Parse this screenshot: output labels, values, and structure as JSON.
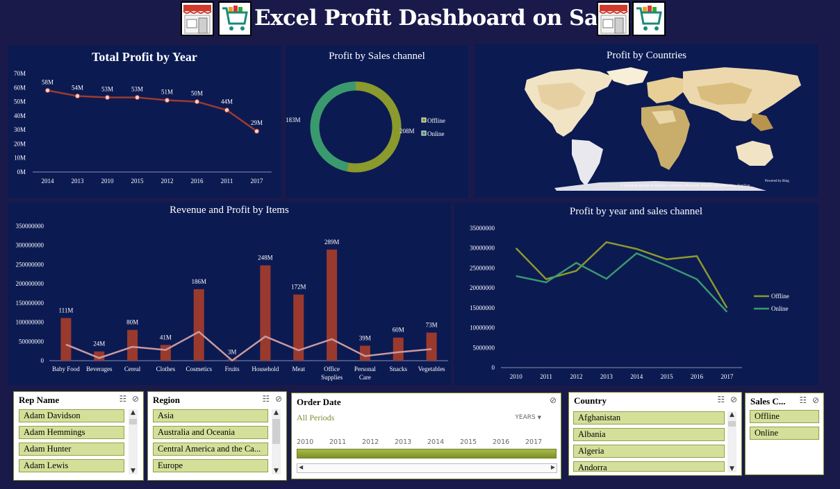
{
  "title": "Excel Profit Dashboard on Sales",
  "colors": {
    "background": "#1a1a4a",
    "panel": "#0c1a52",
    "line_year": "#9c3b2e",
    "offline": "#8a9a2c",
    "online": "#3a9a6e",
    "revenue_bar": "#9a3a2e",
    "profit_line": "#c89aa0"
  },
  "icons": [
    "store-icon",
    "shopping-cart-icon",
    "store-icon",
    "shopping-cart-icon"
  ],
  "charts": {
    "profit_by_year": {
      "title": "Total Profit by Year"
    },
    "profit_by_channel": {
      "title": "Profit by Sales channel"
    },
    "profit_by_country": {
      "title": "Profit by Countries",
      "credit_top": "Powered by Bing",
      "credit_bottom": "© Australian Bureau of Statistics, GeoNames, Microsoft, Navinfo, OpenStreetMap, TomTom"
    },
    "items": {
      "title": "Revenue and Profit by Items"
    },
    "year_channel": {
      "title": "Profit by year and sales channel"
    }
  },
  "chart_data": [
    {
      "type": "line",
      "title": "Total Profit by Year",
      "categories": [
        "2014",
        "2013",
        "2010",
        "2015",
        "2012",
        "2016",
        "2011",
        "2017"
      ],
      "values": [
        58,
        54,
        53,
        53,
        51,
        50,
        44,
        29
      ],
      "data_labels": [
        "58M",
        "54M",
        "53M",
        "53M",
        "51M",
        "50M",
        "44M",
        "29M"
      ],
      "y_ticks": [
        "70M",
        "60M",
        "50M",
        "40M",
        "30M",
        "20M",
        "10M",
        "0M"
      ],
      "ylim": [
        0,
        70
      ],
      "grid": false
    },
    {
      "type": "pie",
      "title": "Profit by Sales channel",
      "labels": [
        "Offline",
        "Online"
      ],
      "values": [
        208,
        183
      ],
      "data_labels": [
        "208M",
        "183M"
      ],
      "legend": "right"
    },
    {
      "type": "bar",
      "title": "Revenue and Profit by Items",
      "categories": [
        "Baby Food",
        "Beverages",
        "Cereal",
        "Clothes",
        "Cosmetics",
        "Fruits",
        "Household",
        "Meat",
        "Office Supplies",
        "Personal Care",
        "Snacks",
        "Vegetables"
      ],
      "series": [
        {
          "type": "bar",
          "values": [
            111,
            24,
            80,
            41,
            186,
            3,
            248,
            172,
            289,
            39,
            60,
            73
          ],
          "data_labels": [
            "111M",
            "24M",
            "80M",
            "41M",
            "186M",
            "3M",
            "248M",
            "172M",
            "289M",
            "39M",
            "60M",
            "73M"
          ]
        },
        {
          "type": "line",
          "values": [
            42,
            7,
            36,
            28,
            75,
            0.5,
            63,
            27,
            56,
            12,
            22,
            30
          ]
        }
      ],
      "y_ticks": [
        "350000000",
        "300000000",
        "250000000",
        "200000000",
        "150000000",
        "100000000",
        "50000000",
        "0"
      ],
      "ylim": [
        0,
        350
      ],
      "grid": false
    },
    {
      "type": "line",
      "title": "Profit by year and sales channel",
      "categories": [
        "2010",
        "2011",
        "2012",
        "2013",
        "2014",
        "2015",
        "2016",
        "2017"
      ],
      "series": [
        {
          "name": "Offline",
          "values": [
            30000000,
            22200000,
            24300000,
            31500000,
            29800000,
            27200000,
            28000000,
            15000000
          ]
        },
        {
          "name": "Online",
          "values": [
            23000000,
            21400000,
            26300000,
            22300000,
            28700000,
            25600000,
            22200000,
            14000000
          ]
        }
      ],
      "y_ticks": [
        "35000000",
        "30000000",
        "25000000",
        "20000000",
        "15000000",
        "10000000",
        "5000000",
        "0"
      ],
      "ylim": [
        0,
        35000000
      ],
      "legend": "right",
      "grid": false
    }
  ],
  "slicers": {
    "rep": {
      "header": "Rep Name",
      "items": [
        "Adam Davidson",
        "Adam Hemmings",
        "Adam Hunter",
        "Adam Lewis"
      ]
    },
    "region": {
      "header": "Region",
      "items": [
        "Asia",
        "Australia and Oceania",
        "Central America and the Ca...",
        "Europe"
      ]
    },
    "order_date": {
      "header": "Order Date",
      "period": "All Periods",
      "unit": "YEARS",
      "years": [
        "2010",
        "2011",
        "2012",
        "2013",
        "2014",
        "2015",
        "2016",
        "2017"
      ]
    },
    "country": {
      "header": "Country",
      "items": [
        "Afghanistan",
        "Albania",
        "Algeria",
        "Andorra"
      ]
    },
    "channel": {
      "header": "Sales C...",
      "items": [
        "Offline",
        "Online"
      ]
    }
  }
}
